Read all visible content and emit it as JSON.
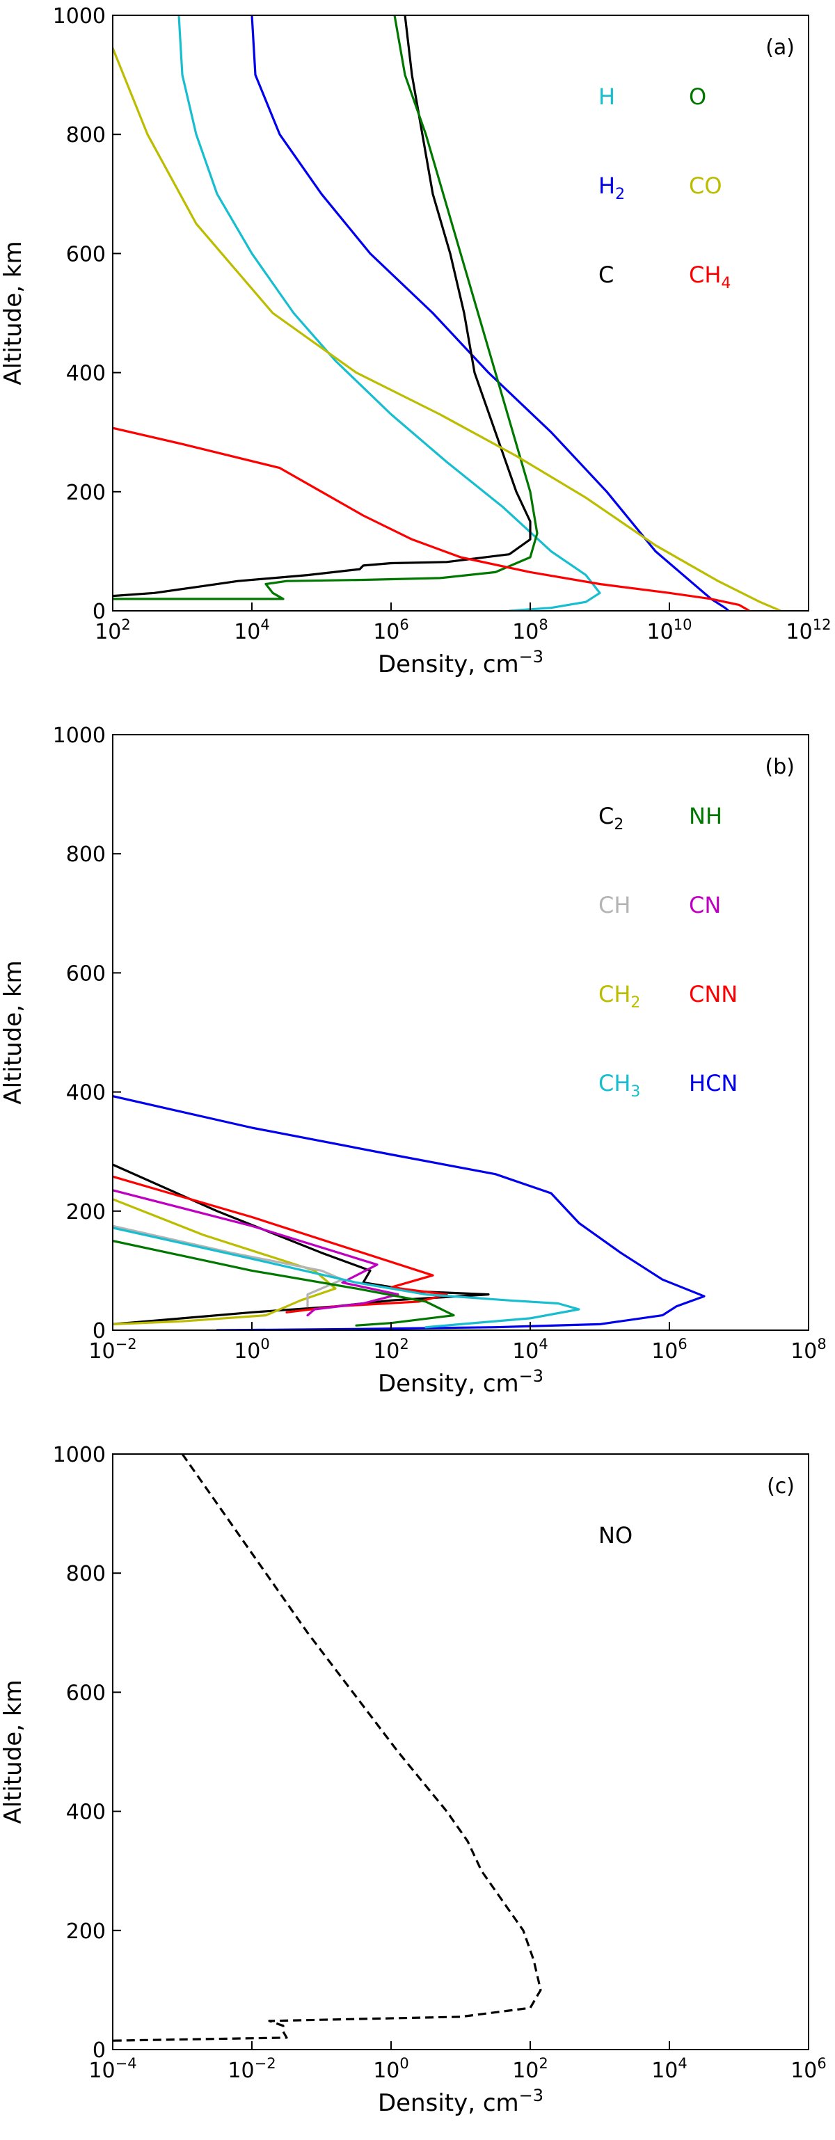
{
  "chart_data": [
    {
      "id": "a",
      "type": "line",
      "panel_label": "(a)",
      "xlabel": "Density, cm",
      "xlabel_sup": "−3",
      "ylabel": "Altitude, km",
      "xscale": "log",
      "xlim_exp": [
        2,
        12
      ],
      "xticks_exp": [
        2,
        4,
        6,
        8,
        10,
        12
      ],
      "ylim": [
        0,
        1000
      ],
      "yticks": [
        0,
        200,
        400,
        600,
        800,
        1000
      ],
      "legend_position": "top-right",
      "series": [
        {
          "name": "H",
          "label": "H",
          "sub": "",
          "color": "#17becf",
          "dash": false,
          "points": [
            [
              2.95,
              1000
            ],
            [
              3.0,
              900
            ],
            [
              3.2,
              800
            ],
            [
              3.5,
              700
            ],
            [
              4.0,
              600
            ],
            [
              4.6,
              500
            ],
            [
              5.2,
              420
            ],
            [
              6.0,
              330
            ],
            [
              6.8,
              250
            ],
            [
              7.6,
              175
            ],
            [
              8.3,
              100
            ],
            [
              8.8,
              60
            ],
            [
              9.0,
              30
            ],
            [
              8.8,
              15
            ],
            [
              8.3,
              5
            ],
            [
              7.7,
              0
            ]
          ]
        },
        {
          "name": "H2",
          "label": "H",
          "sub": "2",
          "color": "#0000ee",
          "dash": false,
          "points": [
            [
              4.0,
              1000
            ],
            [
              4.05,
              900
            ],
            [
              4.4,
              800
            ],
            [
              5.0,
              700
            ],
            [
              5.7,
              600
            ],
            [
              6.6,
              500
            ],
            [
              7.4,
              400
            ],
            [
              8.3,
              300
            ],
            [
              9.1,
              200
            ],
            [
              9.8,
              100
            ],
            [
              10.4,
              40
            ],
            [
              10.6,
              20
            ],
            [
              10.8,
              5
            ],
            [
              10.85,
              0
            ]
          ]
        },
        {
          "name": "C",
          "label": "C",
          "sub": "",
          "color": "#000000",
          "dash": false,
          "points": [
            [
              6.2,
              1000
            ],
            [
              6.3,
              900
            ],
            [
              6.45,
              800
            ],
            [
              6.6,
              700
            ],
            [
              6.85,
              600
            ],
            [
              7.05,
              500
            ],
            [
              7.2,
              400
            ],
            [
              7.5,
              300
            ],
            [
              7.8,
              200
            ],
            [
              8.0,
              150
            ],
            [
              8.0,
              120
            ],
            [
              7.7,
              95
            ],
            [
              6.8,
              82
            ],
            [
              6.0,
              80
            ],
            [
              5.6,
              76
            ],
            [
              5.55,
              70
            ],
            [
              4.8,
              60
            ],
            [
              3.8,
              50
            ],
            [
              3.2,
              40
            ],
            [
              2.6,
              30
            ],
            [
              2.0,
              25
            ]
          ]
        },
        {
          "name": "O",
          "label": "O",
          "sub": "",
          "color": "#007800",
          "dash": false,
          "points": [
            [
              6.05,
              1000
            ],
            [
              6.2,
              900
            ],
            [
              6.5,
              800
            ],
            [
              6.75,
              700
            ],
            [
              7.0,
              600
            ],
            [
              7.25,
              500
            ],
            [
              7.5,
              400
            ],
            [
              7.75,
              300
            ],
            [
              8.0,
              200
            ],
            [
              8.1,
              130
            ],
            [
              8.0,
              90
            ],
            [
              7.5,
              65
            ],
            [
              6.7,
              55
            ],
            [
              5.6,
              52
            ],
            [
              4.5,
              50
            ],
            [
              4.2,
              45
            ],
            [
              4.3,
              30
            ],
            [
              4.45,
              20
            ],
            [
              2.0,
              20
            ]
          ]
        },
        {
          "name": "CO",
          "label": "CO",
          "sub": "",
          "color": "#bcbd00",
          "dash": false,
          "points": [
            [
              2.0,
              945
            ],
            [
              2.5,
              800
            ],
            [
              3.2,
              650
            ],
            [
              4.3,
              500
            ],
            [
              5.5,
              400
            ],
            [
              6.7,
              330
            ],
            [
              7.8,
              260
            ],
            [
              8.8,
              190
            ],
            [
              9.8,
              110
            ],
            [
              10.7,
              50
            ],
            [
              11.3,
              15
            ],
            [
              11.6,
              0
            ]
          ]
        },
        {
          "name": "CH4",
          "label": "CH",
          "sub": "4",
          "color": "#ff0000",
          "dash": false,
          "points": [
            [
              2.0,
              307
            ],
            [
              3.0,
              280
            ],
            [
              4.4,
              240
            ],
            [
              5.0,
              200
            ],
            [
              5.6,
              160
            ],
            [
              6.3,
              120
            ],
            [
              7.0,
              90
            ],
            [
              8.0,
              65
            ],
            [
              9.0,
              45
            ],
            [
              10.0,
              30
            ],
            [
              10.6,
              20
            ],
            [
              11.0,
              10
            ],
            [
              11.15,
              0
            ]
          ]
        }
      ],
      "legend": [
        {
          "key": "H",
          "sub": "",
          "color": "#17becf"
        },
        {
          "key": "O",
          "sub": "",
          "color": "#007800"
        },
        {
          "key": "H",
          "sub": "2",
          "color": "#0000ee"
        },
        {
          "key": "CO",
          "sub": "",
          "color": "#bcbd00"
        },
        {
          "key": "C",
          "sub": "",
          "color": "#000000"
        },
        {
          "key": "CH",
          "sub": "4",
          "color": "#ff0000"
        }
      ]
    },
    {
      "id": "b",
      "type": "line",
      "panel_label": "(b)",
      "xlabel": "Density, cm",
      "xlabel_sup": "−3",
      "ylabel": "Altitude, km",
      "xscale": "log",
      "xlim_exp": [
        -2,
        8
      ],
      "xticks_exp": [
        -2,
        0,
        2,
        4,
        6,
        8
      ],
      "ylim": [
        0,
        1000
      ],
      "yticks": [
        0,
        200,
        400,
        600,
        800,
        1000
      ],
      "legend_position": "top-right",
      "series": [
        {
          "name": "HCN",
          "label": "HCN",
          "sub": "",
          "color": "#0000ee",
          "dash": false,
          "points": [
            [
              -2.0,
              393
            ],
            [
              0.0,
              340
            ],
            [
              2.0,
              295
            ],
            [
              3.5,
              262
            ],
            [
              4.3,
              230
            ],
            [
              4.7,
              180
            ],
            [
              5.3,
              130
            ],
            [
              5.9,
              85
            ],
            [
              6.5,
              57
            ],
            [
              6.1,
              40
            ],
            [
              5.9,
              25
            ],
            [
              5.0,
              10
            ],
            [
              3.5,
              5
            ],
            [
              1.5,
              2
            ],
            [
              -0.5,
              0
            ]
          ]
        },
        {
          "name": "C2",
          "label": "C",
          "sub": "2",
          "color": "#000000",
          "dash": false,
          "points": [
            [
              -2.0,
              278
            ],
            [
              -0.5,
              200
            ],
            [
              1.0,
              130
            ],
            [
              1.7,
              100
            ],
            [
              1.6,
              80
            ],
            [
              2.4,
              65
            ],
            [
              3.4,
              60
            ],
            [
              2.0,
              50
            ],
            [
              1.2,
              40
            ],
            [
              0.0,
              30
            ],
            [
              -1.0,
              20
            ],
            [
              -2.0,
              10
            ]
          ]
        },
        {
          "name": "CNN",
          "label": "CNN",
          "sub": "",
          "color": "#ff0000",
          "dash": false,
          "points": [
            [
              -2.0,
              258
            ],
            [
              0.0,
              190
            ],
            [
              2.6,
              92
            ],
            [
              2.0,
              72
            ],
            [
              2.8,
              60
            ],
            [
              2.4,
              48
            ],
            [
              1.2,
              40
            ],
            [
              0.5,
              30
            ]
          ]
        },
        {
          "name": "CN",
          "label": "CN",
          "sub": "",
          "color": "#c000c0",
          "dash": false,
          "points": [
            [
              -2.0,
              235
            ],
            [
              0.0,
              175
            ],
            [
              1.8,
              110
            ],
            [
              1.3,
              80
            ],
            [
              2.1,
              60
            ],
            [
              1.6,
              45
            ],
            [
              0.9,
              35
            ],
            [
              0.8,
              25
            ]
          ]
        },
        {
          "name": "CH2",
          "label": "CH",
          "sub": "2",
          "color": "#bcbd00",
          "dash": false,
          "points": [
            [
              -2.0,
              220
            ],
            [
              -0.7,
              160
            ],
            [
              0.9,
              100
            ],
            [
              1.2,
              70
            ],
            [
              0.7,
              50
            ],
            [
              0.5,
              40
            ],
            [
              0.2,
              25
            ],
            [
              -1.0,
              15
            ],
            [
              -2.0,
              10
            ]
          ]
        },
        {
          "name": "CH",
          "label": "CH",
          "sub": "",
          "color": "#b4b4b4",
          "dash": false,
          "points": [
            [
              -2.0,
              175
            ],
            [
              -0.3,
              130
            ],
            [
              1.0,
              100
            ],
            [
              1.3,
              85
            ],
            [
              0.8,
              60
            ],
            [
              0.8,
              40
            ]
          ]
        },
        {
          "name": "CH3",
          "label": "CH",
          "sub": "3",
          "color": "#17becf",
          "dash": false,
          "points": [
            [
              -2.0,
              172
            ],
            [
              0.0,
              120
            ],
            [
              1.5,
              80
            ],
            [
              2.5,
              60
            ],
            [
              3.7,
              50
            ],
            [
              4.4,
              45
            ],
            [
              4.7,
              35
            ],
            [
              4.0,
              20
            ],
            [
              3.0,
              10
            ],
            [
              2.5,
              5
            ]
          ]
        },
        {
          "name": "NH",
          "label": "NH",
          "sub": "",
          "color": "#007800",
          "dash": false,
          "points": [
            [
              -2.0,
              150
            ],
            [
              0.0,
              100
            ],
            [
              1.5,
              70
            ],
            [
              2.5,
              48
            ],
            [
              2.9,
              25
            ],
            [
              2.0,
              12
            ],
            [
              1.5,
              8
            ]
          ]
        }
      ],
      "legend": [
        {
          "key": "C",
          "sub": "2",
          "color": "#000000"
        },
        {
          "key": "NH",
          "sub": "",
          "color": "#007800"
        },
        {
          "key": "CH",
          "sub": "",
          "color": "#b4b4b4"
        },
        {
          "key": "CN",
          "sub": "",
          "color": "#c000c0"
        },
        {
          "key": "CH",
          "sub": "2",
          "color": "#bcbd00"
        },
        {
          "key": "CNN",
          "sub": "",
          "color": "#ff0000"
        },
        {
          "key": "CH",
          "sub": "3",
          "color": "#17becf"
        },
        {
          "key": "HCN",
          "sub": "",
          "color": "#0000ee"
        }
      ]
    },
    {
      "id": "c",
      "type": "line",
      "panel_label": "(c)",
      "xlabel": "Density, cm",
      "xlabel_sup": "−3",
      "ylabel": "Altitude, km",
      "xscale": "log",
      "xlim_exp": [
        -4,
        6
      ],
      "xticks_exp": [
        -4,
        -2,
        0,
        2,
        4,
        6
      ],
      "ylim": [
        0,
        1000
      ],
      "yticks": [
        0,
        200,
        400,
        600,
        800,
        1000
      ],
      "legend_position": "top-right",
      "series": [
        {
          "name": "NO",
          "label": "NO",
          "sub": "",
          "color": "#000000",
          "dash": true,
          "points": [
            [
              -3.0,
              1000
            ],
            [
              -2.4,
              900
            ],
            [
              -1.8,
              800
            ],
            [
              -1.2,
              700
            ],
            [
              -0.55,
              600
            ],
            [
              0.1,
              500
            ],
            [
              0.8,
              400
            ],
            [
              1.1,
              350
            ],
            [
              1.3,
              300
            ],
            [
              1.6,
              250
            ],
            [
              1.9,
              200
            ],
            [
              2.05,
              150
            ],
            [
              2.15,
              100
            ],
            [
              2.0,
              70
            ],
            [
              1.0,
              55
            ],
            [
              -1.0,
              50
            ],
            [
              -1.75,
              48
            ],
            [
              -1.55,
              40
            ],
            [
              -1.55,
              30
            ],
            [
              -1.5,
              20
            ],
            [
              -2.5,
              18
            ],
            [
              -4.0,
              15
            ]
          ]
        }
      ],
      "legend": [
        {
          "key": "NO",
          "sub": "",
          "color": "#000000"
        }
      ]
    }
  ]
}
